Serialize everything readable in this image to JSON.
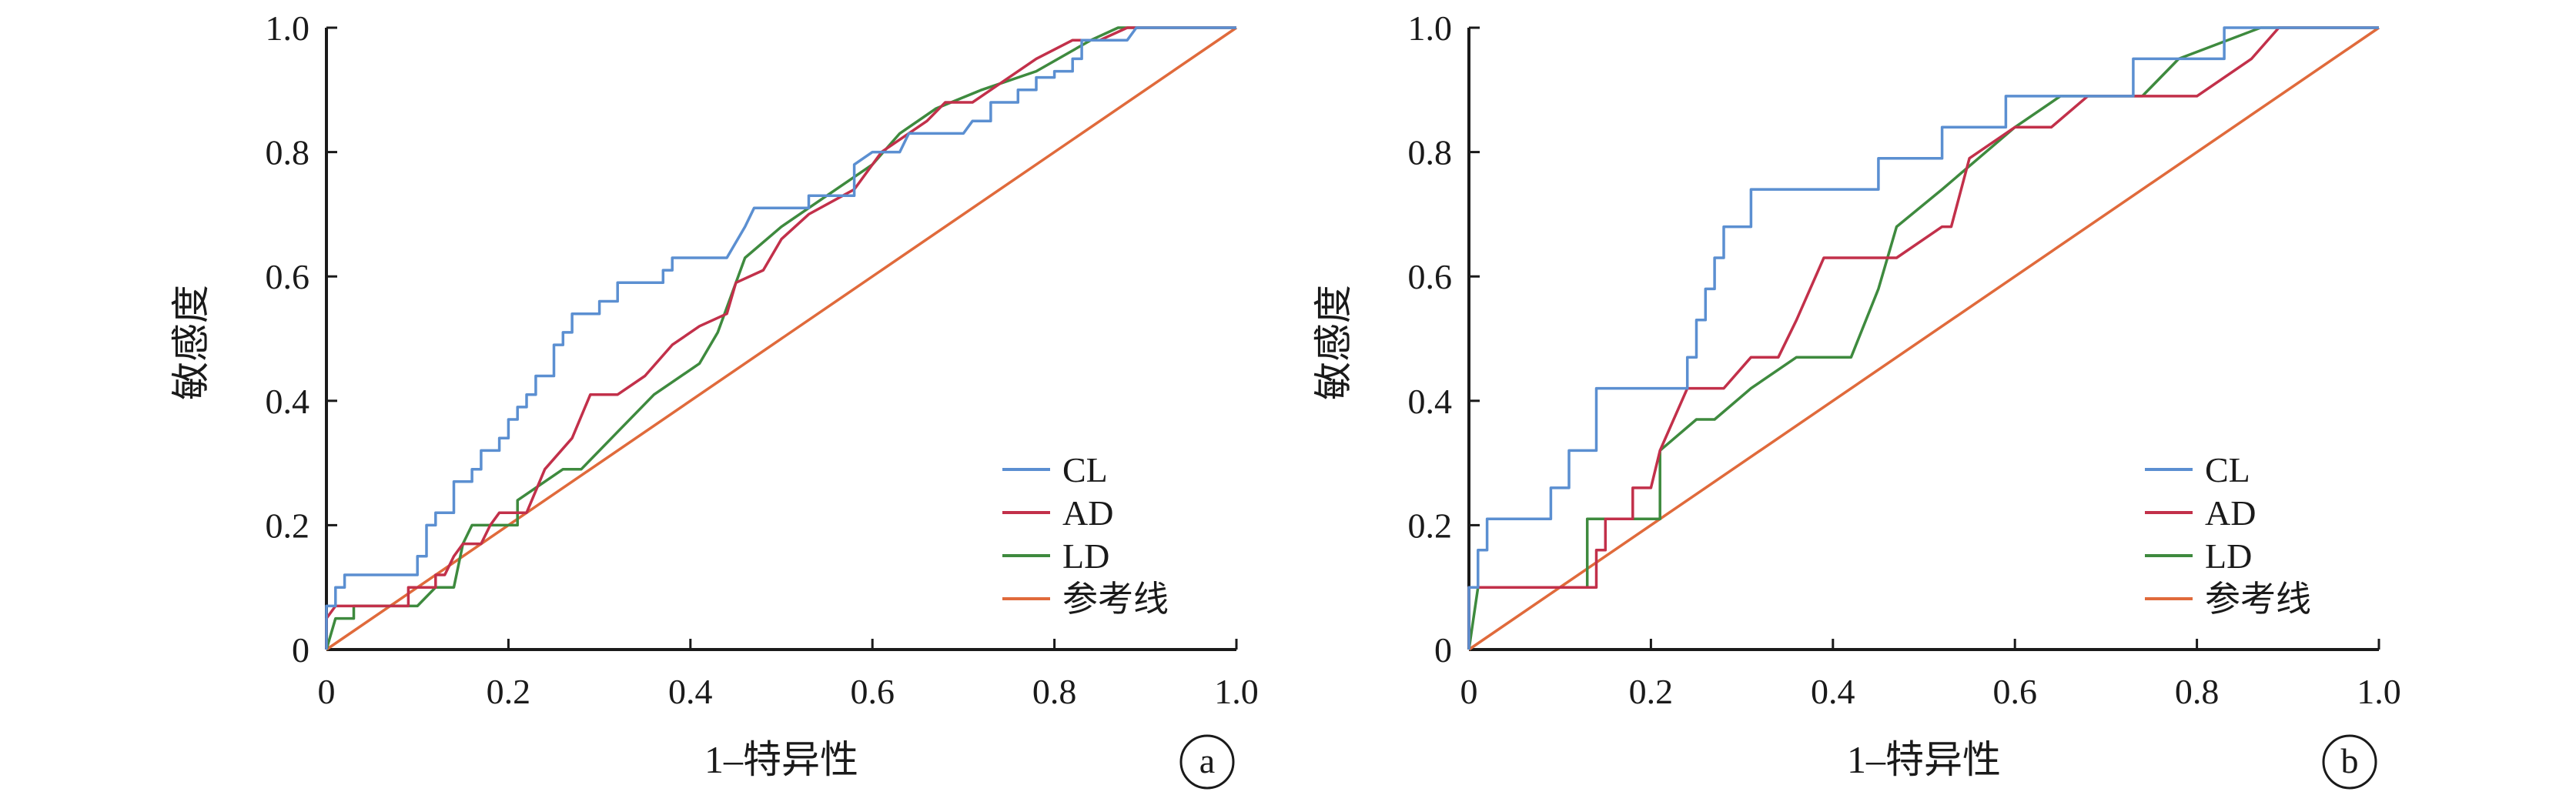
{
  "chart_data": [
    {
      "type": "line",
      "panel_label": "a",
      "xlabel": "1–特异性",
      "ylabel": "敏感度",
      "xlim": [
        0,
        1
      ],
      "ylim": [
        0,
        1
      ],
      "x_ticks": [
        "0",
        "0.2",
        "0.4",
        "0.6",
        "0.8",
        "1.0"
      ],
      "y_ticks": [
        "0",
        "0.2",
        "0.4",
        "0.6",
        "0.8",
        "1.0"
      ],
      "grid": false,
      "legend_position": "bottom-right",
      "series": [
        {
          "name": "CL",
          "color": "#5b8fd1",
          "points": [
            [
              0,
              0
            ],
            [
              0,
              0.07
            ],
            [
              0.01,
              0.07
            ],
            [
              0.01,
              0.1
            ],
            [
              0.02,
              0.1
            ],
            [
              0.02,
              0.12
            ],
            [
              0.1,
              0.12
            ],
            [
              0.1,
              0.15
            ],
            [
              0.11,
              0.15
            ],
            [
              0.11,
              0.2
            ],
            [
              0.12,
              0.2
            ],
            [
              0.12,
              0.22
            ],
            [
              0.14,
              0.22
            ],
            [
              0.14,
              0.27
            ],
            [
              0.16,
              0.27
            ],
            [
              0.16,
              0.29
            ],
            [
              0.17,
              0.29
            ],
            [
              0.17,
              0.32
            ],
            [
              0.19,
              0.32
            ],
            [
              0.19,
              0.34
            ],
            [
              0.2,
              0.34
            ],
            [
              0.2,
              0.37
            ],
            [
              0.21,
              0.37
            ],
            [
              0.21,
              0.39
            ],
            [
              0.22,
              0.39
            ],
            [
              0.22,
              0.41
            ],
            [
              0.23,
              0.41
            ],
            [
              0.23,
              0.44
            ],
            [
              0.25,
              0.44
            ],
            [
              0.25,
              0.49
            ],
            [
              0.26,
              0.49
            ],
            [
              0.26,
              0.51
            ],
            [
              0.27,
              0.51
            ],
            [
              0.27,
              0.54
            ],
            [
              0.3,
              0.54
            ],
            [
              0.3,
              0.56
            ],
            [
              0.32,
              0.56
            ],
            [
              0.32,
              0.59
            ],
            [
              0.37,
              0.59
            ],
            [
              0.37,
              0.61
            ],
            [
              0.38,
              0.61
            ],
            [
              0.38,
              0.63
            ],
            [
              0.44,
              0.63
            ],
            [
              0.46,
              0.68
            ],
            [
              0.47,
              0.71
            ],
            [
              0.53,
              0.71
            ],
            [
              0.53,
              0.73
            ],
            [
              0.58,
              0.73
            ],
            [
              0.58,
              0.78
            ],
            [
              0.6,
              0.8
            ],
            [
              0.63,
              0.8
            ],
            [
              0.64,
              0.83
            ],
            [
              0.7,
              0.83
            ],
            [
              0.71,
              0.85
            ],
            [
              0.73,
              0.85
            ],
            [
              0.73,
              0.88
            ],
            [
              0.76,
              0.88
            ],
            [
              0.76,
              0.9
            ],
            [
              0.78,
              0.9
            ],
            [
              0.78,
              0.92
            ],
            [
              0.8,
              0.92
            ],
            [
              0.8,
              0.93
            ],
            [
              0.82,
              0.93
            ],
            [
              0.82,
              0.95
            ],
            [
              0.83,
              0.95
            ],
            [
              0.83,
              0.98
            ],
            [
              0.88,
              0.98
            ],
            [
              0.89,
              1
            ],
            [
              1,
              1
            ]
          ]
        },
        {
          "name": "AD",
          "color": "#c2304a",
          "points": [
            [
              0,
              0
            ],
            [
              0,
              0.05
            ],
            [
              0.01,
              0.07
            ],
            [
              0.09,
              0.07
            ],
            [
              0.09,
              0.1
            ],
            [
              0.12,
              0.1
            ],
            [
              0.12,
              0.12
            ],
            [
              0.13,
              0.12
            ],
            [
              0.14,
              0.15
            ],
            [
              0.15,
              0.17
            ],
            [
              0.17,
              0.17
            ],
            [
              0.18,
              0.2
            ],
            [
              0.19,
              0.22
            ],
            [
              0.22,
              0.22
            ],
            [
              0.24,
              0.29
            ],
            [
              0.27,
              0.34
            ],
            [
              0.29,
              0.41
            ],
            [
              0.32,
              0.41
            ],
            [
              0.35,
              0.44
            ],
            [
              0.38,
              0.49
            ],
            [
              0.41,
              0.52
            ],
            [
              0.44,
              0.54
            ],
            [
              0.45,
              0.59
            ],
            [
              0.48,
              0.61
            ],
            [
              0.5,
              0.66
            ],
            [
              0.53,
              0.7
            ],
            [
              0.58,
              0.74
            ],
            [
              0.61,
              0.8
            ],
            [
              0.66,
              0.85
            ],
            [
              0.68,
              0.88
            ],
            [
              0.71,
              0.88
            ],
            [
              0.73,
              0.9
            ],
            [
              0.78,
              0.95
            ],
            [
              0.82,
              0.98
            ],
            [
              0.85,
              0.98
            ],
            [
              0.88,
              1
            ],
            [
              1,
              1
            ]
          ]
        },
        {
          "name": "LD",
          "color": "#3e8a3e",
          "points": [
            [
              0,
              0
            ],
            [
              0.01,
              0.05
            ],
            [
              0.03,
              0.05
            ],
            [
              0.03,
              0.07
            ],
            [
              0.1,
              0.07
            ],
            [
              0.12,
              0.1
            ],
            [
              0.14,
              0.1
            ],
            [
              0.15,
              0.17
            ],
            [
              0.16,
              0.2
            ],
            [
              0.21,
              0.2
            ],
            [
              0.21,
              0.24
            ],
            [
              0.24,
              0.27
            ],
            [
              0.26,
              0.29
            ],
            [
              0.28,
              0.29
            ],
            [
              0.32,
              0.35
            ],
            [
              0.36,
              0.41
            ],
            [
              0.41,
              0.46
            ],
            [
              0.43,
              0.51
            ],
            [
              0.46,
              0.63
            ],
            [
              0.5,
              0.68
            ],
            [
              0.54,
              0.72
            ],
            [
              0.6,
              0.78
            ],
            [
              0.63,
              0.83
            ],
            [
              0.67,
              0.87
            ],
            [
              0.72,
              0.9
            ],
            [
              0.78,
              0.93
            ],
            [
              0.84,
              0.98
            ],
            [
              0.87,
              1
            ],
            [
              1,
              1
            ]
          ]
        },
        {
          "name": "参考线",
          "color": "#e06a3b",
          "points": [
            [
              0,
              0
            ],
            [
              1,
              1
            ]
          ]
        }
      ]
    },
    {
      "type": "line",
      "panel_label": "b",
      "xlabel": "1–特异性",
      "ylabel": "敏感度",
      "xlim": [
        0,
        1
      ],
      "ylim": [
        0,
        1
      ],
      "x_ticks": [
        "0",
        "0.2",
        "0.4",
        "0.6",
        "0.8",
        "1.0"
      ],
      "y_ticks": [
        "0",
        "0.2",
        "0.4",
        "0.6",
        "0.8",
        "1.0"
      ],
      "grid": false,
      "legend_position": "bottom-right",
      "series": [
        {
          "name": "CL",
          "color": "#5b8fd1",
          "points": [
            [
              0,
              0
            ],
            [
              0,
              0.1
            ],
            [
              0.01,
              0.1
            ],
            [
              0.01,
              0.16
            ],
            [
              0.02,
              0.16
            ],
            [
              0.02,
              0.21
            ],
            [
              0.09,
              0.21
            ],
            [
              0.09,
              0.26
            ],
            [
              0.11,
              0.26
            ],
            [
              0.11,
              0.32
            ],
            [
              0.14,
              0.32
            ],
            [
              0.14,
              0.42
            ],
            [
              0.24,
              0.42
            ],
            [
              0.24,
              0.47
            ],
            [
              0.25,
              0.47
            ],
            [
              0.25,
              0.53
            ],
            [
              0.26,
              0.53
            ],
            [
              0.26,
              0.58
            ],
            [
              0.27,
              0.58
            ],
            [
              0.27,
              0.63
            ],
            [
              0.28,
              0.63
            ],
            [
              0.28,
              0.68
            ],
            [
              0.31,
              0.68
            ],
            [
              0.31,
              0.74
            ],
            [
              0.45,
              0.74
            ],
            [
              0.45,
              0.79
            ],
            [
              0.52,
              0.79
            ],
            [
              0.52,
              0.84
            ],
            [
              0.59,
              0.84
            ],
            [
              0.59,
              0.89
            ],
            [
              0.73,
              0.89
            ],
            [
              0.73,
              0.95
            ],
            [
              0.83,
              0.95
            ],
            [
              0.83,
              1
            ],
            [
              1,
              1
            ]
          ]
        },
        {
          "name": "AD",
          "color": "#c2304a",
          "points": [
            [
              0,
              0
            ],
            [
              0,
              0.1
            ],
            [
              0.14,
              0.1
            ],
            [
              0.14,
              0.16
            ],
            [
              0.15,
              0.16
            ],
            [
              0.15,
              0.21
            ],
            [
              0.18,
              0.21
            ],
            [
              0.18,
              0.26
            ],
            [
              0.2,
              0.26
            ],
            [
              0.21,
              0.32
            ],
            [
              0.24,
              0.42
            ],
            [
              0.28,
              0.42
            ],
            [
              0.31,
              0.47
            ],
            [
              0.34,
              0.47
            ],
            [
              0.36,
              0.53
            ],
            [
              0.39,
              0.63
            ],
            [
              0.47,
              0.63
            ],
            [
              0.52,
              0.68
            ],
            [
              0.53,
              0.68
            ],
            [
              0.55,
              0.79
            ],
            [
              0.6,
              0.84
            ],
            [
              0.64,
              0.84
            ],
            [
              0.68,
              0.89
            ],
            [
              0.8,
              0.89
            ],
            [
              0.8,
              0.89
            ],
            [
              0.86,
              0.95
            ],
            [
              0.89,
              1
            ],
            [
              1,
              1
            ]
          ]
        },
        {
          "name": "LD",
          "color": "#3e8a3e",
          "points": [
            [
              0,
              0
            ],
            [
              0.01,
              0.1
            ],
            [
              0.13,
              0.1
            ],
            [
              0.13,
              0.21
            ],
            [
              0.21,
              0.21
            ],
            [
              0.21,
              0.32
            ],
            [
              0.25,
              0.37
            ],
            [
              0.27,
              0.37
            ],
            [
              0.31,
              0.42
            ],
            [
              0.36,
              0.47
            ],
            [
              0.42,
              0.47
            ],
            [
              0.45,
              0.58
            ],
            [
              0.47,
              0.68
            ],
            [
              0.52,
              0.74
            ],
            [
              0.56,
              0.79
            ],
            [
              0.6,
              0.84
            ],
            [
              0.65,
              0.89
            ],
            [
              0.74,
              0.89
            ],
            [
              0.78,
              0.95
            ],
            [
              0.87,
              1
            ],
            [
              1,
              1
            ]
          ]
        },
        {
          "name": "参考线",
          "color": "#e06a3b",
          "points": [
            [
              0,
              0
            ],
            [
              1,
              1
            ]
          ]
        }
      ]
    }
  ]
}
